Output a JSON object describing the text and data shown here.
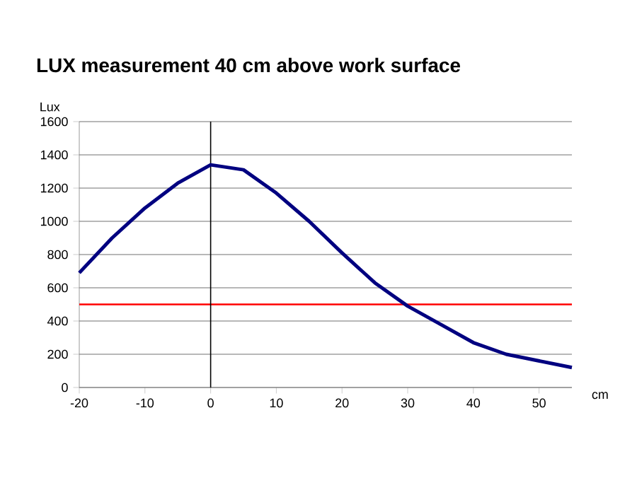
{
  "chart_data": {
    "type": "line",
    "title": "LUX measurement 40 cm above work surface",
    "ylabel": "Lux",
    "xlabel": "cm",
    "x": [
      -20,
      -15,
      -10,
      -5,
      0,
      5,
      10,
      15,
      20,
      25,
      30,
      35,
      40,
      45,
      50,
      55
    ],
    "series": [
      {
        "color": "#000080",
        "values": [
          690,
          900,
          1080,
          1230,
          1340,
          1310,
          1170,
          1000,
          810,
          630,
          490,
          380,
          270,
          200,
          160,
          120
        ]
      }
    ],
    "xlim": [
      -20,
      55
    ],
    "xticks": [
      -20,
      -10,
      0,
      10,
      20,
      30,
      40,
      50
    ],
    "ylim": [
      0,
      1600
    ],
    "yticks": [
      0,
      200,
      400,
      600,
      800,
      1000,
      1200,
      1400,
      1600
    ],
    "grid": "y",
    "marker": "none",
    "line_style": "solid",
    "ref_lines": [
      {
        "axis": "y",
        "value": 500,
        "color": "#ff0000"
      },
      {
        "axis": "x",
        "value": 0,
        "color": "#000000"
      }
    ]
  }
}
